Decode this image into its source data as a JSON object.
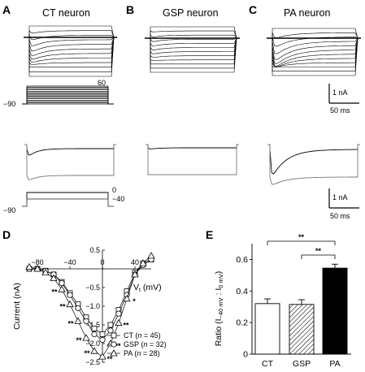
{
  "panels": {
    "A": {
      "label": "A",
      "title": "CT neuron"
    },
    "B": {
      "label": "B",
      "title": "GSP neuron"
    },
    "C": {
      "label": "C",
      "title": "PA neuron"
    },
    "D": {
      "label": "D"
    },
    "E": {
      "label": "E"
    }
  },
  "protocol_top": {
    "hold": "−90",
    "max": "60"
  },
  "protocol_bottom": {
    "hold": "−90",
    "step1": "0",
    "step2": "−40"
  },
  "scale_bar_top": {
    "current": "1 nA",
    "time": "50 ms"
  },
  "scale_bar_bottom": {
    "current": "1 nA",
    "time": "50 ms"
  },
  "chart_data": [
    {
      "type": "line",
      "panel": "D",
      "xlabel": "V",
      "xlabel_sub": "t",
      "xlabel_unit": " (mV)",
      "ylabel": "Current (nA)",
      "xlim": [
        -90,
        60
      ],
      "ylim": [
        -2.5,
        0.5
      ],
      "x_ticks": [
        "−80",
        "−40",
        "0",
        "40"
      ],
      "x_tick_values": [
        -80,
        -40,
        0,
        40
      ],
      "y_ticks": [
        "0.5",
        "0",
        "−0.5",
        "−1.0",
        "−1.5",
        "−2.0",
        "−2.5"
      ],
      "y_tick_values": [
        0.5,
        0,
        -0.5,
        -1.0,
        -1.5,
        -2.0,
        -2.5
      ],
      "x": [
        -90,
        -80,
        -70,
        -60,
        -50,
        -40,
        -30,
        -20,
        -10,
        0,
        10,
        20,
        30,
        40,
        50,
        60
      ],
      "series": [
        {
          "name": "CT",
          "n": "45",
          "marker": "square",
          "values": [
            0.0,
            0.0,
            -0.05,
            -0.15,
            -0.35,
            -0.65,
            -0.95,
            -1.3,
            -1.6,
            -1.75,
            -1.5,
            -1.1,
            -0.6,
            -0.1,
            0.15,
            0.25
          ]
        },
        {
          "name": "GSP",
          "n": "32",
          "marker": "circle",
          "values": [
            0.0,
            0.0,
            -0.05,
            -0.15,
            -0.38,
            -0.7,
            -1.05,
            -1.4,
            -1.75,
            -1.9,
            -1.65,
            -1.2,
            -0.7,
            -0.15,
            0.1,
            0.25
          ]
        },
        {
          "name": "PA",
          "n": "28",
          "marker": "triangle",
          "values": [
            0.05,
            0.0,
            -0.1,
            -0.25,
            -0.55,
            -0.95,
            -1.4,
            -1.85,
            -2.2,
            -2.35,
            -2.0,
            -1.45,
            -0.8,
            -0.15,
            0.15,
            0.35
          ]
        }
      ],
      "significance_x": [
        -50,
        -40,
        -30,
        -20,
        -10,
        0,
        10,
        20,
        30
      ],
      "significance": "**",
      "single_star_x": 30,
      "single_star": "*"
    },
    {
      "type": "bar",
      "panel": "E",
      "categories": [
        "CT",
        "GSP",
        "PA"
      ],
      "values": [
        0.32,
        0.315,
        0.545
      ],
      "errors": [
        0.03,
        0.03,
        0.025
      ],
      "fills": [
        "#ffffff",
        "hatch",
        "#000000"
      ],
      "ylabel_main": "Ratio (I",
      "ylabel_sub1": "−40 mV",
      "ylabel_sep": " : I",
      "ylabel_sub2": "0 mV",
      "ylabel_end": ")",
      "ylim": [
        0,
        0.7
      ],
      "y_ticks": [
        "0",
        "0.2",
        "0.4",
        "0.6"
      ],
      "y_tick_values": [
        0,
        0.2,
        0.4,
        0.6
      ],
      "brackets": [
        {
          "from": "CT",
          "to": "PA",
          "label": "**"
        },
        {
          "from": "GSP",
          "to": "PA",
          "label": "**"
        }
      ]
    }
  ]
}
